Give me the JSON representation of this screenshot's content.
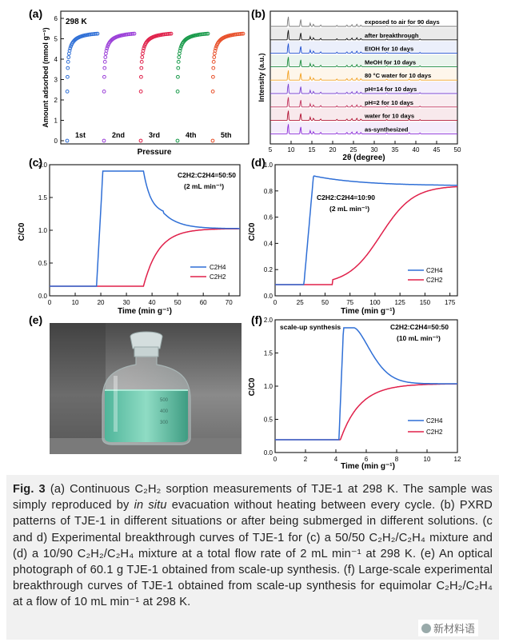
{
  "figure": {
    "panels": {
      "a": {
        "label": "(a)",
        "temp": "298 K",
        "ylabel": "Amount adsorbed (mmol g⁻¹)",
        "xlabel": "Pressure",
        "yticks": [
          "0",
          "1",
          "2",
          "3",
          "4",
          "5",
          "6"
        ],
        "cycles": [
          "1st",
          "2nd",
          "3rd",
          "4th",
          "5th"
        ]
      },
      "b": {
        "label": "(b)",
        "ylabel": "Intensity (a.u.)",
        "xlabel": "2θ (degree)",
        "xticks": [
          "5",
          "10",
          "15",
          "20",
          "25",
          "30",
          "35",
          "40",
          "45",
          "50"
        ],
        "traces": [
          "exposed to air for 90 days",
          "after breakthrough",
          "EtOH for 10 days",
          "MeOH for 10 days",
          "80 °C water for 10 days",
          "pH=14 for 10 days",
          "pH=2 for 10 days",
          "water for 10 days",
          "as-synthesized"
        ]
      },
      "c": {
        "label": "(c)",
        "cond1": "C2H2:C2H4=50:50",
        "cond2": "(2 mL min⁻¹)",
        "ylabel": "C/C0",
        "xlabel": "Time (min g⁻¹)",
        "xticks": [
          "0",
          "10",
          "20",
          "30",
          "40",
          "50",
          "60",
          "70"
        ],
        "yticks": [
          "0.0",
          "0.5",
          "1.0",
          "1.5",
          "2.0"
        ],
        "legend": [
          "C2H4",
          "C2H2"
        ]
      },
      "d": {
        "label": "(d)",
        "cond1": "C2H2:C2H4=10:90",
        "cond2": "(2 mL min⁻¹)",
        "ylabel": "C/C0",
        "xlabel": "Time (min g⁻¹)",
        "xticks": [
          "0",
          "25",
          "50",
          "75",
          "100",
          "125",
          "150",
          "175"
        ],
        "yticks": [
          "0.0",
          "0.2",
          "0.4",
          "0.6",
          "0.8",
          "1.0"
        ],
        "legend": [
          "C2H4",
          "C2H2"
        ]
      },
      "e": {
        "label": "(e)"
      },
      "f": {
        "label": "(f)",
        "title": "scale-up synthesis",
        "cond1": "C2H2:C2H4=50:50",
        "cond2": "(10 mL min⁻¹)",
        "ylabel": "C/C0",
        "xlabel": "Time (min g⁻¹)",
        "xticks": [
          "0",
          "2",
          "4",
          "6",
          "8",
          "10",
          "12"
        ],
        "yticks": [
          "0.0",
          "0.5",
          "1.0",
          "1.5",
          "2.0"
        ],
        "legend": [
          "C2H4",
          "C2H2"
        ]
      }
    }
  },
  "caption": {
    "fig_label": "Fig. 3",
    "text_a": "(a) Continuous C₂H₂ sorption measurements of TJE-1 at 298 K. The sample was simply reproduced by ",
    "italic": "in situ",
    "text_b": " evacuation without heating between every cycle. (b) PXRD patterns of TJE-1 in different situations or after being submerged in different solutions. (c and d) Experimental breakthrough curves of TJE-1 for (c) a 50/50 C₂H₂/C₂H₄ mixture and (d) a 10/90 C₂H₂/C₂H₄ mixture at a total flow rate of 2 mL min⁻¹ at 298 K. (e) An optical photograph of 60.1 g TJE-1 obtained from scale-up synthesis. (f) Large-scale experimental breakthrough curves of TJE-1 obtained from scale-up synthesis for equimolar C₂H₂/C₂H₄ at a flow of 10 mL min⁻¹ at 298 K."
  },
  "watermark": "新材料语",
  "colors": {
    "blue": "#2f6fd6",
    "purple": "#9b3fd8",
    "red": "#e0204a",
    "green": "#189a4a",
    "orange": "#e8502a",
    "c2h4": "#2f6fd6",
    "c2h2": "#e0204a"
  }
}
